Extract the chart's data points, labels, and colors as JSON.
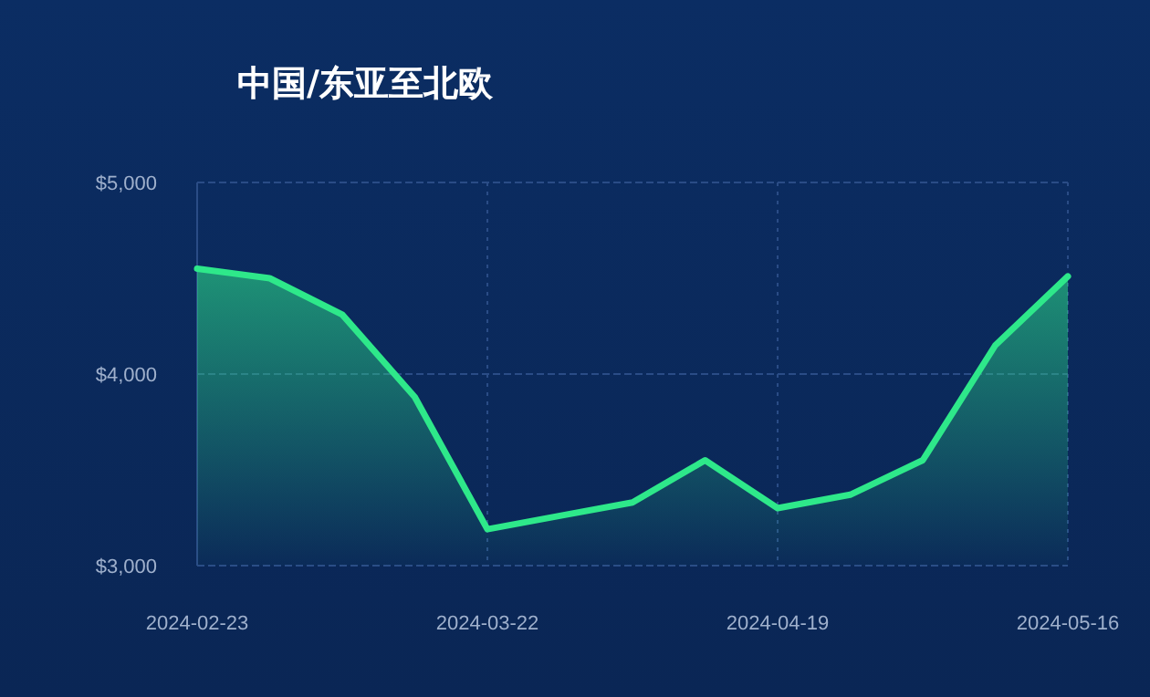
{
  "chart_data": {
    "type": "area",
    "title": "中国/东亚至北欧",
    "categories": [
      "2024-02-23",
      null,
      null,
      null,
      "2024-03-22",
      null,
      null,
      null,
      "2024-04-19",
      null,
      null,
      null,
      "2024-05-16"
    ],
    "series": [
      {
        "color": "#2ee88a",
        "values": [
          4550,
          4500,
          4310,
          3880,
          3190,
          3260,
          3330,
          3550,
          3300,
          3370,
          3550,
          4150,
          4510
        ]
      }
    ],
    "ylim": [
      3000,
      5000
    ],
    "yticks": [
      {
        "value": 3000,
        "label": "$3,000"
      },
      {
        "value": 4000,
        "label": "$4,000"
      },
      {
        "value": 5000,
        "label": "$5,000"
      }
    ],
    "grid": true
  }
}
